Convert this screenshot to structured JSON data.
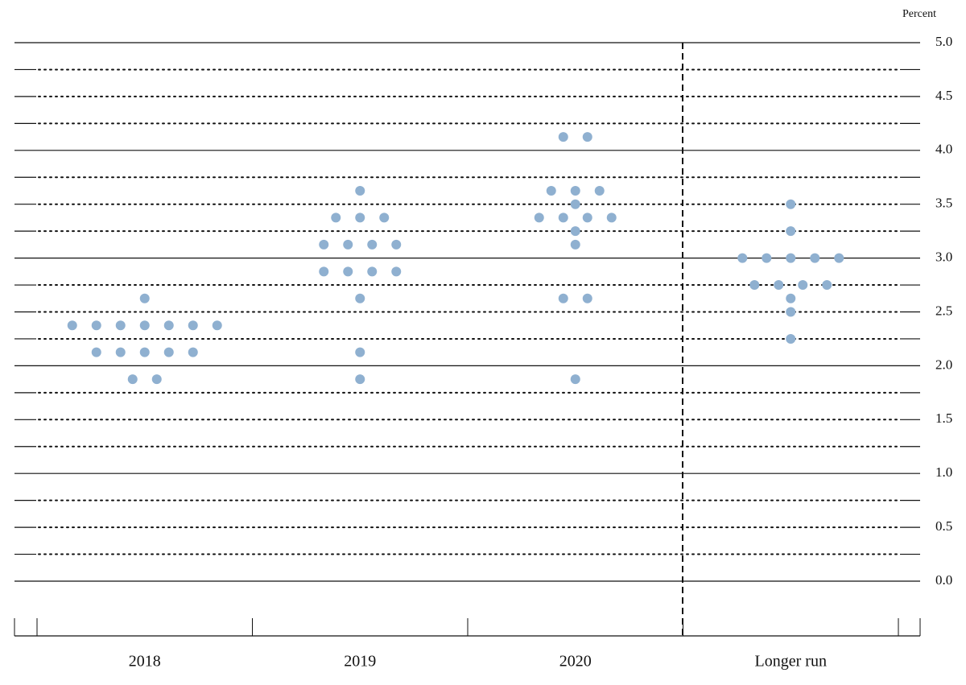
{
  "chart_data": {
    "type": "dot",
    "y_label": "Percent",
    "categories": [
      "2018",
      "2019",
      "2020",
      "Longer run"
    ],
    "values": [
      [
        2.625,
        2.375,
        2.375,
        2.375,
        2.375,
        2.375,
        2.375,
        2.375,
        2.125,
        2.125,
        2.125,
        2.125,
        2.125,
        1.875,
        1.875
      ],
      [
        3.625,
        3.375,
        3.375,
        3.375,
        3.125,
        3.125,
        3.125,
        3.125,
        2.875,
        2.875,
        2.875,
        2.875,
        2.625,
        2.125,
        1.875
      ],
      [
        4.125,
        4.125,
        3.625,
        3.625,
        3.625,
        3.5,
        3.375,
        3.375,
        3.375,
        3.375,
        3.25,
        3.125,
        2.625,
        2.625,
        1.875
      ],
      [
        3.5,
        3.25,
        3.0,
        3.0,
        3.0,
        3.0,
        3.0,
        2.75,
        2.75,
        2.75,
        2.75,
        2.625,
        2.5,
        2.25
      ]
    ],
    "color": "#8fb0d0",
    "ylim": [
      0,
      5
    ],
    "yticks": [
      {
        "value": 0,
        "label": "0.0"
      },
      0.5,
      {
        "value": 1,
        "label": "1.0"
      },
      1.5,
      {
        "value": 2,
        "label": "2.0"
      },
      2.5,
      {
        "value": 3,
        "label": "3.0"
      },
      3.5,
      {
        "value": 4,
        "label": "4.0"
      },
      4.5,
      {
        "value": 5,
        "label": "5.0"
      }
    ],
    "minor_yticks": [
      0.25,
      0.75,
      1.25,
      1.75,
      2.25,
      2.75,
      3.25,
      3.75,
      4.25,
      4.75
    ],
    "grid": true
  }
}
